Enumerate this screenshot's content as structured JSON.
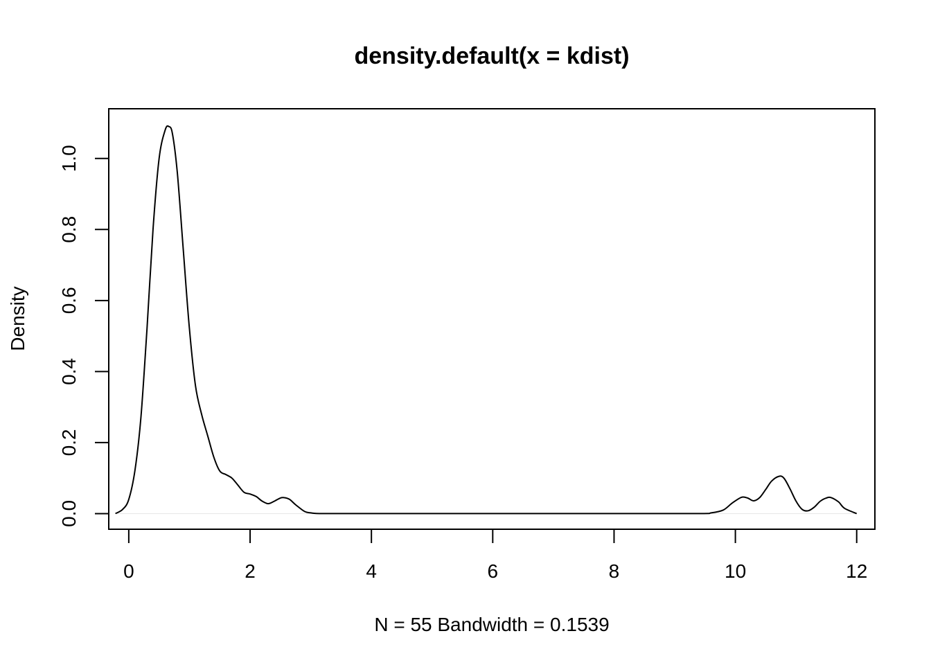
{
  "chart_data": {
    "type": "line",
    "title": "density.default(x = kdist)",
    "xlabel": "N = 55   Bandwidth = 0.1539",
    "ylabel": "Density",
    "xlim": [
      -0.33,
      12.3
    ],
    "ylim": [
      -0.044,
      1.14
    ],
    "x_ticks": [
      0,
      2,
      4,
      6,
      8,
      10,
      12
    ],
    "y_ticks": [
      0.0,
      0.2,
      0.4,
      0.6,
      0.8,
      1.0
    ],
    "x_tick_labels": [
      "0",
      "2",
      "4",
      "6",
      "8",
      "10",
      "12"
    ],
    "y_tick_labels": [
      "0.0",
      "0.2",
      "0.4",
      "0.6",
      "0.8",
      "1.0"
    ],
    "zero_line": true,
    "series": [
      {
        "color": "#000000",
        "x": [
          -0.22,
          -0.1,
          0.0,
          0.1,
          0.2,
          0.3,
          0.4,
          0.5,
          0.6,
          0.66,
          0.72,
          0.8,
          0.9,
          1.0,
          1.1,
          1.2,
          1.3,
          1.4,
          1.5,
          1.6,
          1.7,
          1.8,
          1.9,
          2.0,
          2.1,
          2.2,
          2.3,
          2.4,
          2.5,
          2.56,
          2.65,
          2.75,
          2.9,
          3.0,
          3.2,
          4.0,
          6.0,
          8.0,
          9.4,
          9.6,
          9.8,
          9.95,
          10.1,
          10.2,
          10.3,
          10.4,
          10.5,
          10.6,
          10.72,
          10.8,
          10.9,
          11.0,
          11.1,
          11.2,
          11.3,
          11.4,
          11.5,
          11.58,
          11.7,
          11.8,
          12.0
        ],
        "y": [
          0.0,
          0.012,
          0.04,
          0.12,
          0.27,
          0.52,
          0.8,
          1.0,
          1.08,
          1.09,
          1.07,
          0.96,
          0.74,
          0.52,
          0.36,
          0.28,
          0.22,
          0.16,
          0.12,
          0.11,
          0.1,
          0.08,
          0.06,
          0.055,
          0.048,
          0.035,
          0.028,
          0.035,
          0.044,
          0.045,
          0.04,
          0.025,
          0.006,
          0.002,
          0.0,
          0.0,
          0.0,
          0.0,
          0.0,
          0.002,
          0.01,
          0.03,
          0.046,
          0.044,
          0.036,
          0.045,
          0.068,
          0.092,
          0.105,
          0.1,
          0.07,
          0.035,
          0.012,
          0.008,
          0.018,
          0.035,
          0.044,
          0.045,
          0.033,
          0.015,
          0.0
        ]
      }
    ]
  }
}
